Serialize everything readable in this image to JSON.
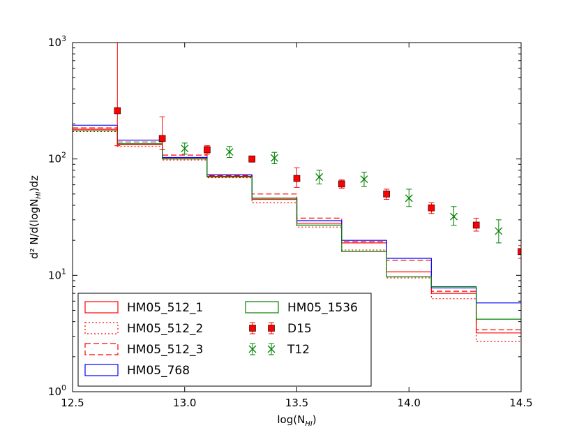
{
  "chart_data": {
    "type": "step",
    "title": "",
    "xlabel": "log(N_HI)",
    "ylabel": "d² N/d(logN_HI)dz",
    "xlim": [
      12.5,
      14.5
    ],
    "ylim": [
      1,
      1000
    ],
    "yscale": "log",
    "x_ticks": [
      "12.5",
      "13.0",
      "13.5",
      "14.0",
      "14.5"
    ],
    "y_ticks": [
      {
        "base": "10",
        "exp": "0",
        "value": 1
      },
      {
        "base": "10",
        "exp": "1",
        "value": 10
      },
      {
        "base": "10",
        "exp": "2",
        "value": 100
      },
      {
        "base": "10",
        "exp": "3",
        "value": 1000
      }
    ],
    "bin_edges": [
      12.5,
      12.7,
      12.9,
      13.1,
      13.3,
      13.5,
      13.7,
      13.9,
      14.1,
      14.3,
      14.5
    ],
    "step_series": [
      {
        "name": "HM05_512_1",
        "color": "#ff0000",
        "style": "solid",
        "values": [
          180,
          133,
          102,
          71,
          45,
          28,
          19,
          10.7,
          7.0,
          3.2
        ]
      },
      {
        "name": "HM05_512_2",
        "color": "#ff0000",
        "style": "dotted",
        "values": [
          172,
          128,
          98,
          69,
          42,
          26,
          16.5,
          9.5,
          6.3,
          2.7
        ]
      },
      {
        "name": "HM05_512_3",
        "color": "#ff0000",
        "style": "dashed",
        "values": [
          185,
          140,
          108,
          72,
          50,
          31,
          19.5,
          13.5,
          7.3,
          3.4
        ]
      },
      {
        "name": "HM05_768",
        "color": "#0000ff",
        "style": "solid",
        "values": [
          195,
          145,
          103,
          73,
          46,
          29.5,
          20,
          14,
          7.8,
          5.8
        ]
      },
      {
        "name": "HM05_1536",
        "color": "#008000",
        "style": "solid",
        "values": [
          175,
          135,
          100,
          70,
          46,
          27,
          16,
          9.7,
          8.0,
          4.2
        ]
      }
    ],
    "point_series": [
      {
        "name": "D15",
        "color": "#ff0000",
        "marker": "square",
        "x": [
          12.7,
          12.9,
          13.1,
          13.3,
          13.5,
          13.7,
          13.9,
          14.1,
          14.3,
          14.5
        ],
        "y": [
          260,
          150,
          120,
          100,
          68,
          61,
          50,
          38,
          27,
          16
        ],
        "err_low": [
          130,
          30,
          10,
          6,
          11,
          5,
          5,
          4,
          3,
          2
        ],
        "err_high": [
          740,
          80,
          10,
          6,
          16,
          5,
          5,
          4,
          4,
          2
        ]
      },
      {
        "name": "T12",
        "color": "#008000",
        "marker": "x",
        "x": [
          13.0,
          13.2,
          13.4,
          13.6,
          13.8,
          14.0,
          14.2,
          14.4
        ],
        "y": [
          123,
          115,
          102,
          70,
          67,
          46,
          32,
          24
        ],
        "err_low": [
          13,
          12,
          11,
          9,
          9,
          7,
          5,
          5
        ],
        "err_high": [
          14,
          13,
          12,
          10,
          10,
          9,
          7,
          6
        ]
      }
    ],
    "legend": {
      "placement": "lower-left",
      "entries": [
        "HM05_512_1",
        "HM05_512_2",
        "HM05_512_3",
        "HM05_768",
        "HM05_1536",
        "D15",
        "T12"
      ]
    }
  }
}
